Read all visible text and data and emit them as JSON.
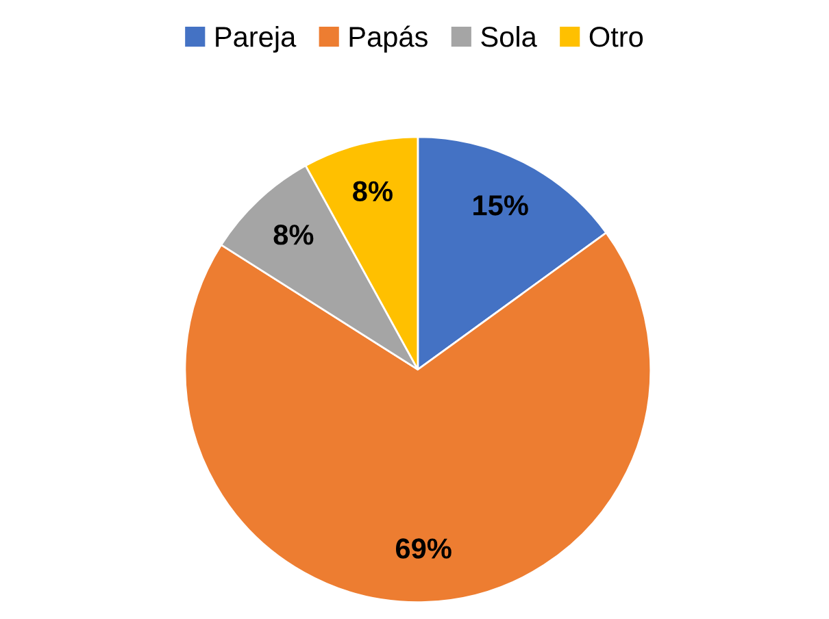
{
  "chart_data": {
    "type": "pie",
    "categories": [
      "Pareja",
      "Papás",
      "Sola",
      "Otro"
    ],
    "values": [
      15,
      69,
      8,
      8
    ],
    "colors": [
      "#4472c4",
      "#ed7d31",
      "#a5a5a5",
      "#ffc000"
    ],
    "value_labels": [
      "15%",
      "69%",
      "8%",
      "8%"
    ],
    "legend": "top"
  }
}
